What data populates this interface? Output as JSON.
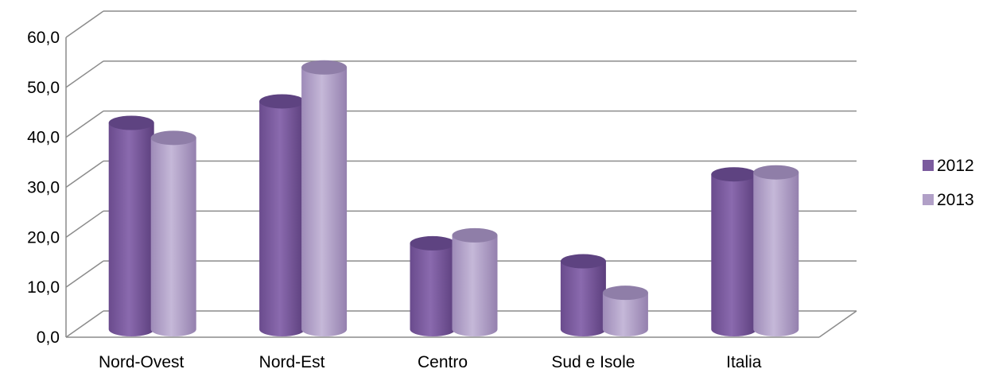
{
  "chart_data": {
    "type": "bar",
    "categories": [
      "Nord-Ovest",
      "Nord-Est",
      "Centro",
      "Sud e Isole",
      "Italia"
    ],
    "series": [
      {
        "name": "2012",
        "values": [
          41.3,
          45.6,
          17.2,
          13.6,
          31.0
        ],
        "color": "#7b5b9e"
      },
      {
        "name": "2013",
        "values": [
          38.3,
          52.4,
          18.8,
          7.3,
          31.4
        ],
        "color": "#b1a0c7"
      }
    ],
    "yticks": [
      "0,0",
      "10,0",
      "20,0",
      "30,0",
      "40,0",
      "50,0",
      "60,0"
    ],
    "ylim": [
      0,
      60
    ],
    "grid": true,
    "legend": "right",
    "title": "",
    "xlabel": "",
    "ylabel": ""
  }
}
